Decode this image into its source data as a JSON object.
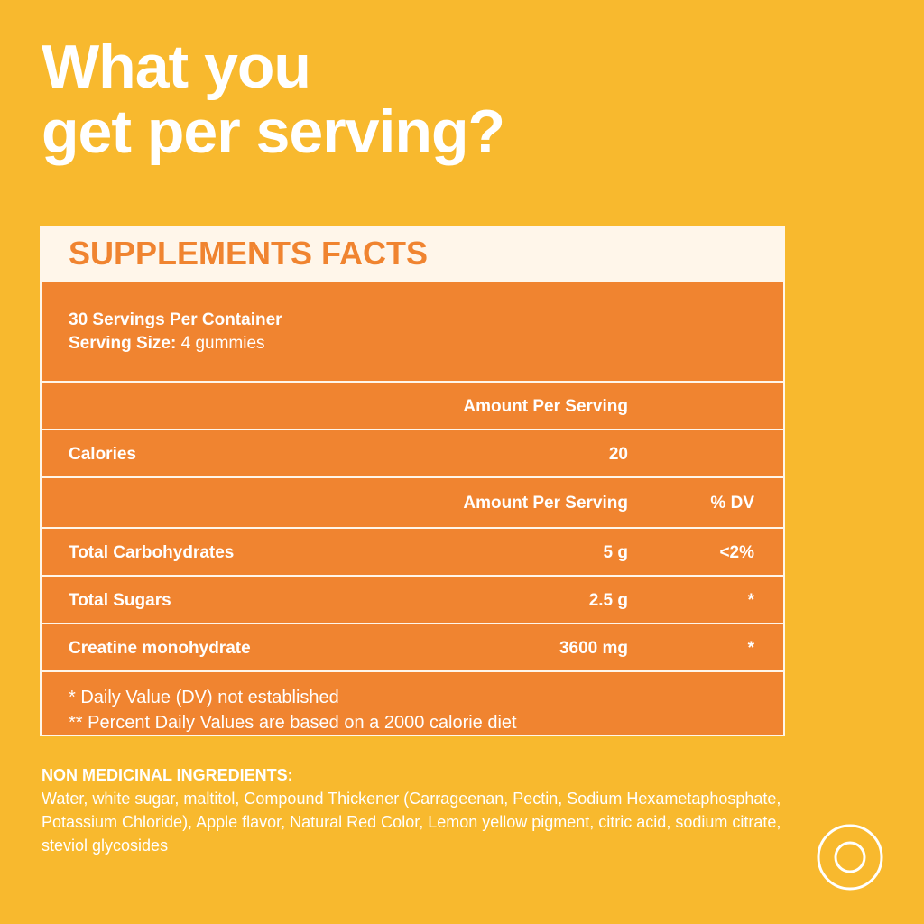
{
  "headline": {
    "line1": "What you",
    "line2": "get per serving?"
  },
  "facts": {
    "title": "SUPPLEMENTS FACTS",
    "servings_per_container": "30 Servings Per Container",
    "serving_size_label": "Serving Size:",
    "serving_size_value": "4 gummies",
    "amount_header": "Amount Per Serving",
    "calories_label": "Calories",
    "calories_value": "20",
    "amount_header_2": "Amount Per Serving",
    "dv_header": "% DV",
    "rows": [
      {
        "name": "Total Carbohydrates",
        "amount": "5 g",
        "dv": "<2%"
      },
      {
        "name": "Total Sugars",
        "amount": "2.5 g",
        "dv": "*"
      },
      {
        "name": "Creatine monohydrate",
        "amount": "3600 mg",
        "dv": "*"
      }
    ],
    "note1": "* Daily Value (DV) not established",
    "note2": "** Percent Daily Values are based on a 2000 calorie diet"
  },
  "ingredients": {
    "title": "NON MEDICINAL INGREDIENTS:",
    "text": "Water, white sugar, maltitol, Compound Thickener (Carrageenan, Pectin, Sodium Hexametaphosphate, Potassium Chloride), Apple flavor, Natural Red Color, Lemon yellow pigment, citric acid, sodium citrate, steviol glycosides"
  },
  "colors": {
    "background": "#f8b92e",
    "panel": "#f08430",
    "cream": "#fff6ea"
  },
  "icons": {
    "logo": "circle-logo-icon"
  }
}
